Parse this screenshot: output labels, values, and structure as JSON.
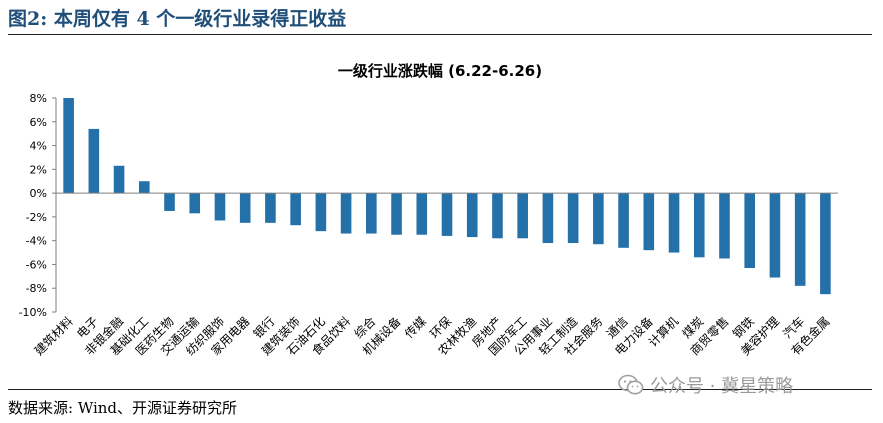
{
  "figure": {
    "title": "图2:  本周仅有 4 个一级行业录得正收益",
    "source": "数据来源:  Wind、开源证券研究所",
    "watermark": "公众号 · 冀星策略"
  },
  "colors": {
    "bar": "#2470a8",
    "title": "#1f4e79",
    "axis": "#7f7f7f"
  },
  "chart_data": {
    "type": "bar",
    "title": "一级行业涨跌幅 (6.22-6.26)",
    "xlabel": "",
    "ylabel": "",
    "ylim": [
      -10,
      8
    ],
    "yticks": [
      "8%",
      "6%",
      "4%",
      "2%",
      "0%",
      "-2%",
      "-4%",
      "-6%",
      "-8%",
      "-10%"
    ],
    "grid": false,
    "legend": "none",
    "categories": [
      "建筑材料",
      "电子",
      "非银金融",
      "基础化工",
      "医药生物",
      "交通运输",
      "纺织服饰",
      "家用电器",
      "银行",
      "建筑装饰",
      "石油石化",
      "食品饮料",
      "综合",
      "机械设备",
      "传媒",
      "环保",
      "农林牧渔",
      "房地产",
      "国防军工",
      "公用事业",
      "轻工制造",
      "社会服务",
      "通信",
      "电力设备",
      "计算机",
      "煤炭",
      "商贸零售",
      "钢铁",
      "美容护理",
      "汽车",
      "有色金属"
    ],
    "values": [
      8.0,
      5.4,
      2.3,
      1.0,
      -1.5,
      -1.7,
      -2.3,
      -2.5,
      -2.5,
      -2.7,
      -3.2,
      -3.4,
      -3.4,
      -3.5,
      -3.5,
      -3.6,
      -3.7,
      -3.8,
      -3.8,
      -4.2,
      -4.2,
      -4.3,
      -4.6,
      -4.8,
      -5.0,
      -5.4,
      -5.5,
      -6.3,
      -7.1,
      -7.8,
      -8.5
    ]
  }
}
